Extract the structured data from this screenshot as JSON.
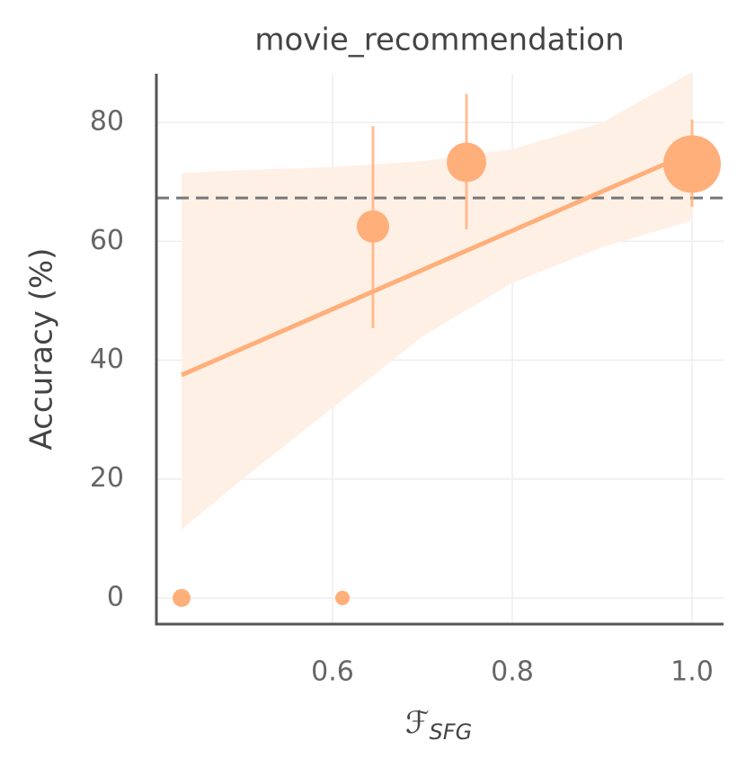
{
  "chart_data": {
    "type": "scatter",
    "title": "movie_recommendation",
    "x_label": "ℱ",
    "x_label_sub": "SFG",
    "y_label": "Accuracy (%)",
    "x": [
      0.432,
      0.611,
      0.645,
      0.749,
      1.0
    ],
    "values": [
      0,
      0,
      62.5,
      73.3,
      73
    ],
    "errors_low": [
      null,
      null,
      45.4,
      62,
      65.8
    ],
    "errors_high": [
      null,
      null,
      79.4,
      84.8,
      80.5
    ],
    "sizes": [
      100,
      64,
      324,
      484,
      1024
    ],
    "color": "#ffaf7a",
    "band_color": "#fff0e6",
    "trend": {
      "x": [
        0.432,
        1.0
      ],
      "y": [
        37.5,
        75
      ]
    },
    "band": {
      "x": [
        0.432,
        0.5,
        0.6,
        0.7,
        0.8,
        0.9,
        1.0
      ],
      "upper": [
        71.5,
        72,
        72.5,
        73.5,
        75.5,
        80,
        88.5
      ],
      "lower": [
        11.5,
        20,
        32,
        44,
        53,
        59,
        63.5
      ]
    },
    "reference_line": 67.3,
    "xlim": [
      0.404,
      1.035
    ],
    "ylim": [
      -4.4,
      88.2
    ],
    "xticks": [
      0.6,
      0.8,
      {
        "value": 1.0,
        "label": "1.0"
      }
    ],
    "yticks": [
      0,
      20,
      40,
      60,
      80
    ],
    "grid": true
  }
}
